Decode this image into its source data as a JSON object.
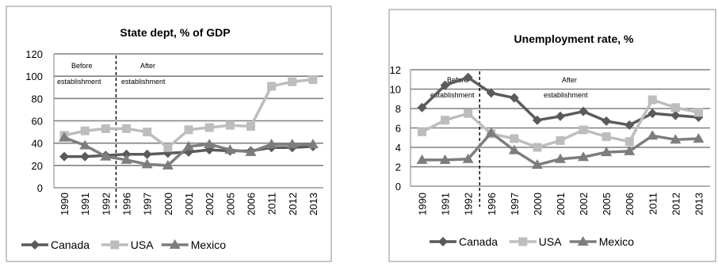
{
  "colors": {
    "canada": "#5a5a5a",
    "usa": "#bdbdbd",
    "mexico": "#7d7d7d",
    "grid": "#808080",
    "frame": "#8c8c8c",
    "divider": "#000000"
  },
  "legend_position": "bottom",
  "chart_data": [
    {
      "type": "line",
      "title": "State dept, % of GDP",
      "xlabel": "",
      "ylabel": "",
      "categories": [
        "1990",
        "1991",
        "1992",
        "1996",
        "1997",
        "2000",
        "2001",
        "2002",
        "2005",
        "2006",
        "2011",
        "2012",
        "2013"
      ],
      "ylim": [
        0,
        120
      ],
      "yticks": [
        0,
        20,
        40,
        60,
        80,
        100,
        120
      ],
      "grid": true,
      "series": [
        {
          "name": "Canada",
          "marker": "diamond",
          "values": [
            28,
            28,
            29,
            30,
            30,
            31,
            32,
            34,
            33,
            33,
            36,
            36,
            37
          ]
        },
        {
          "name": "USA",
          "marker": "square",
          "values": [
            47,
            51,
            53,
            53,
            50,
            36,
            52,
            54,
            56,
            55,
            91,
            95,
            97
          ]
        },
        {
          "name": "Mexico",
          "marker": "triangle",
          "values": [
            45,
            38,
            28,
            25,
            21,
            20,
            37,
            39,
            34,
            32,
            39,
            39,
            39
          ]
        }
      ],
      "period_divider_after": "1992",
      "annotations": {
        "before_line1": "Before",
        "before_line2": "establishment",
        "after_line1": "After",
        "after_line2": "establishment"
      }
    },
    {
      "type": "line",
      "title": "Unemployment rate, %",
      "xlabel": "",
      "ylabel": "",
      "categories": [
        "1990",
        "1991",
        "1992",
        "1996",
        "1997",
        "2000",
        "2001",
        "2002",
        "2005",
        "2006",
        "2011",
        "2012",
        "2013"
      ],
      "ylim": [
        0,
        12
      ],
      "yticks": [
        0,
        2,
        4,
        6,
        8,
        10,
        12
      ],
      "grid": true,
      "series": [
        {
          "name": "Canada",
          "marker": "diamond",
          "values": [
            8.1,
            10.4,
            11.2,
            9.6,
            9.1,
            6.8,
            7.2,
            7.7,
            6.7,
            6.3,
            7.5,
            7.3,
            7.1
          ]
        },
        {
          "name": "USA",
          "marker": "square",
          "values": [
            5.6,
            6.8,
            7.5,
            5.4,
            4.9,
            4.0,
            4.7,
            5.8,
            5.1,
            4.6,
            8.9,
            8.1,
            7.6
          ]
        },
        {
          "name": "Mexico",
          "marker": "triangle",
          "values": [
            2.7,
            2.7,
            2.8,
            5.5,
            3.7,
            2.2,
            2.8,
            3.0,
            3.5,
            3.6,
            5.2,
            4.8,
            4.9
          ]
        }
      ],
      "period_divider_after": "1992",
      "annotations": {
        "before_line1": "Before",
        "before_line2": "establishment",
        "after_line1": "After",
        "after_line2": "establishment"
      }
    }
  ]
}
